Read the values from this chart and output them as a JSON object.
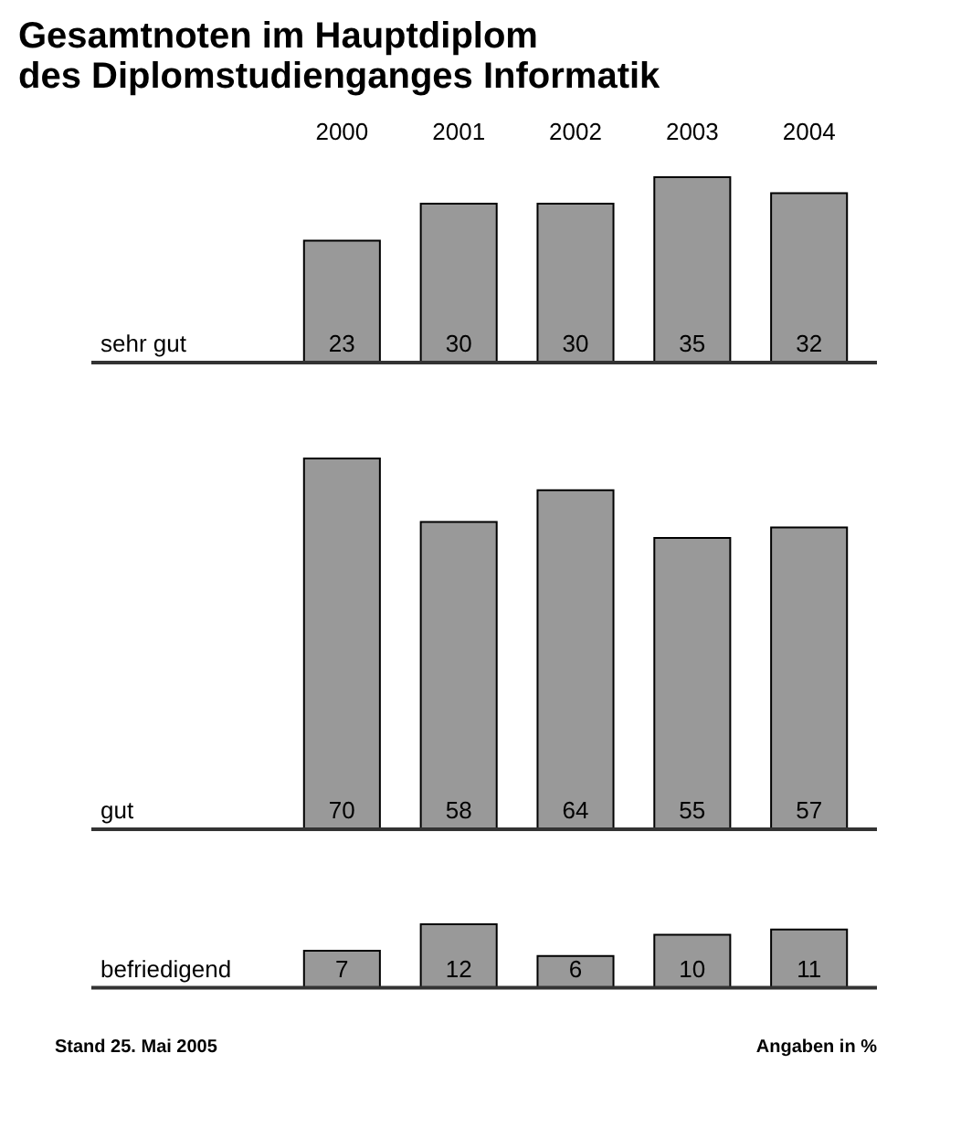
{
  "chart_data": [
    {
      "type": "bar",
      "title": "Gesamtnoten im Hauptdiplom\ndes Diplomstudienganges Informatik",
      "ylabel": "sehr gut",
      "categories": [
        "2000",
        "2001",
        "2002",
        "2003",
        "2004"
      ],
      "values": [
        23,
        30,
        30,
        35,
        32
      ],
      "color": "#999999",
      "data_labels": true,
      "tick_labels": "x"
    },
    {
      "type": "bar",
      "ylabel": "gut",
      "categories": [
        "2000",
        "2001",
        "2002",
        "2003",
        "2004"
      ],
      "values": [
        70,
        58,
        64,
        55,
        57
      ],
      "color": "#999999",
      "data_labels": true,
      "tick_labels": false
    },
    {
      "type": "bar",
      "ylabel": "befriedigend",
      "categories": [
        "2000",
        "2001",
        "2002",
        "2003",
        "2004"
      ],
      "values": [
        7,
        12,
        6,
        10,
        11
      ],
      "color": "#999999",
      "data_labels": true,
      "tick_labels": false,
      "annotations": [
        "Stand 25. Mai 2005",
        "Angaben in %"
      ]
    }
  ]
}
